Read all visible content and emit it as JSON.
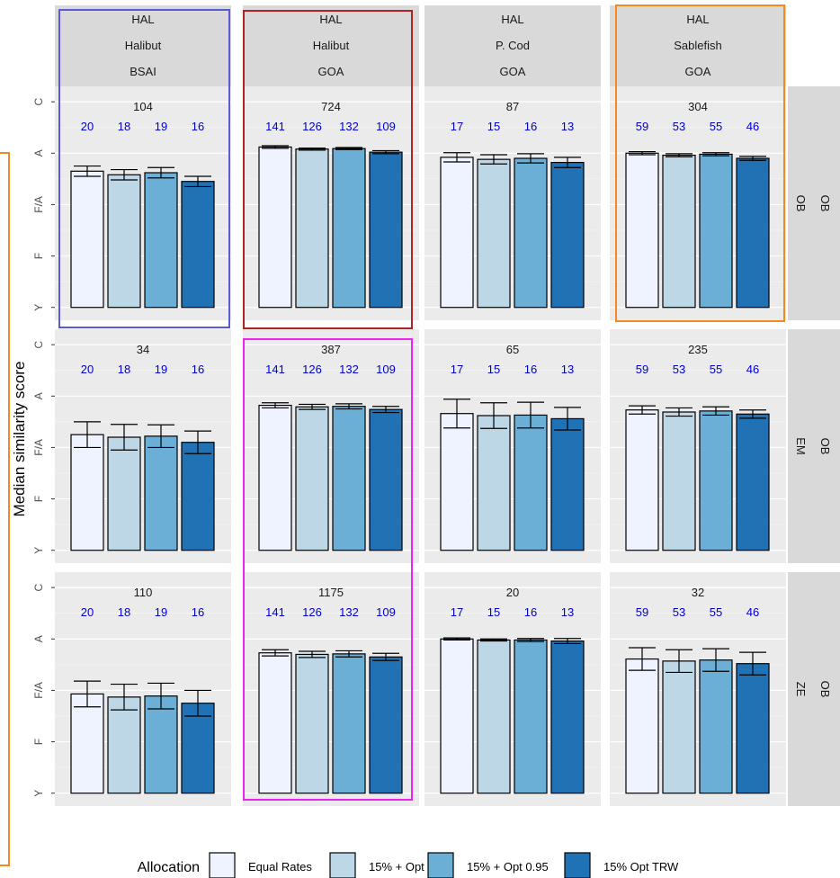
{
  "chart_data": {
    "type": "bar",
    "ylabel": "Median similarity score",
    "y_tick_labels": [
      "Y",
      "F",
      "F/A",
      "A",
      "C"
    ],
    "y_tick_values": [
      1,
      2,
      3,
      4,
      5
    ],
    "ylim": [
      0.75,
      5.3
    ],
    "legend": {
      "title": "Allocation",
      "position": "bottom",
      "entries": [
        {
          "label": "Equal Rates",
          "color": "#eff3ff"
        },
        {
          "label": "15% + Opt",
          "color": "#bdd7e7"
        },
        {
          "label": "15% + Opt 0.95",
          "color": "#6baed6"
        },
        {
          "label": "15% Opt TRW",
          "color": "#2171b5"
        }
      ]
    },
    "columns": [
      {
        "strip": [
          "HAL",
          "Halibut",
          "BSAI"
        ],
        "bar_n": [
          "20",
          "18",
          "19",
          "16"
        ]
      },
      {
        "strip": [
          "HAL",
          "Halibut",
          "GOA"
        ],
        "bar_n": [
          "141",
          "126",
          "132",
          "109"
        ]
      },
      {
        "strip": [
          "HAL",
          "P. Cod",
          "GOA"
        ],
        "bar_n": [
          "17",
          "15",
          "16",
          "13"
        ]
      },
      {
        "strip": [
          "HAL",
          "Sablefish",
          "GOA"
        ],
        "bar_n": [
          "59",
          "53",
          "55",
          "46"
        ]
      }
    ],
    "rows": [
      {
        "strip": [
          "OB",
          "OB"
        ]
      },
      {
        "strip": [
          "OB",
          "EM"
        ]
      },
      {
        "strip": [
          "OB",
          "ZE"
        ]
      }
    ],
    "panels": [
      {
        "row": 0,
        "col": 0,
        "n": "104",
        "values": [
          3.65,
          3.58,
          3.62,
          3.45
        ],
        "errors": [
          0.1,
          0.1,
          0.1,
          0.1
        ]
      },
      {
        "row": 0,
        "col": 1,
        "n": "724",
        "values": [
          4.12,
          4.08,
          4.09,
          4.02
        ],
        "errors": [
          0.025,
          0.02,
          0.02,
          0.03
        ]
      },
      {
        "row": 0,
        "col": 2,
        "n": "87",
        "values": [
          3.92,
          3.88,
          3.9,
          3.82
        ],
        "errors": [
          0.09,
          0.09,
          0.09,
          0.1
        ]
      },
      {
        "row": 0,
        "col": 3,
        "n": "304",
        "values": [
          4.0,
          3.96,
          3.98,
          3.9
        ],
        "errors": [
          0.03,
          0.03,
          0.03,
          0.04
        ]
      },
      {
        "row": 1,
        "col": 0,
        "n": "34",
        "values": [
          3.25,
          3.2,
          3.22,
          3.1
        ],
        "errors": [
          0.25,
          0.25,
          0.22,
          0.22
        ]
      },
      {
        "row": 1,
        "col": 1,
        "n": "387",
        "values": [
          3.82,
          3.79,
          3.8,
          3.74
        ],
        "errors": [
          0.05,
          0.05,
          0.05,
          0.06
        ]
      },
      {
        "row": 1,
        "col": 2,
        "n": "65",
        "values": [
          3.66,
          3.62,
          3.63,
          3.56
        ],
        "errors": [
          0.28,
          0.25,
          0.25,
          0.22
        ]
      },
      {
        "row": 1,
        "col": 3,
        "n": "235",
        "values": [
          3.73,
          3.69,
          3.71,
          3.65
        ],
        "errors": [
          0.08,
          0.08,
          0.08,
          0.08
        ]
      },
      {
        "row": 2,
        "col": 0,
        "n": "110",
        "values": [
          2.93,
          2.87,
          2.89,
          2.75
        ],
        "errors": [
          0.25,
          0.25,
          0.25,
          0.25
        ]
      },
      {
        "row": 2,
        "col": 1,
        "n": "1175",
        "values": [
          3.73,
          3.7,
          3.71,
          3.65
        ],
        "errors": [
          0.06,
          0.06,
          0.06,
          0.07
        ]
      },
      {
        "row": 2,
        "col": 2,
        "n": "20",
        "values": [
          4.0,
          3.98,
          3.98,
          3.96
        ],
        "errors": [
          0.02,
          0.02,
          0.03,
          0.05
        ]
      },
      {
        "row": 2,
        "col": 3,
        "n": "32",
        "values": [
          3.61,
          3.57,
          3.59,
          3.52
        ],
        "errors": [
          0.22,
          0.22,
          0.22,
          0.22
        ]
      }
    ],
    "grid": true,
    "highlight_boxes": [
      {
        "col": 0,
        "rows": [
          0
        ],
        "color": "#5b5bd6"
      },
      {
        "col": 1,
        "rows": [
          0
        ],
        "color": "#b22222"
      },
      {
        "col": 3,
        "rows": [
          0
        ],
        "color": "#f08c1e"
      },
      {
        "col": 1,
        "rows": [
          1,
          2
        ],
        "color": "#ee22ee"
      }
    ],
    "side_bracket": {
      "rows": [
        0,
        2
      ],
      "color": "#f08c1e"
    }
  }
}
